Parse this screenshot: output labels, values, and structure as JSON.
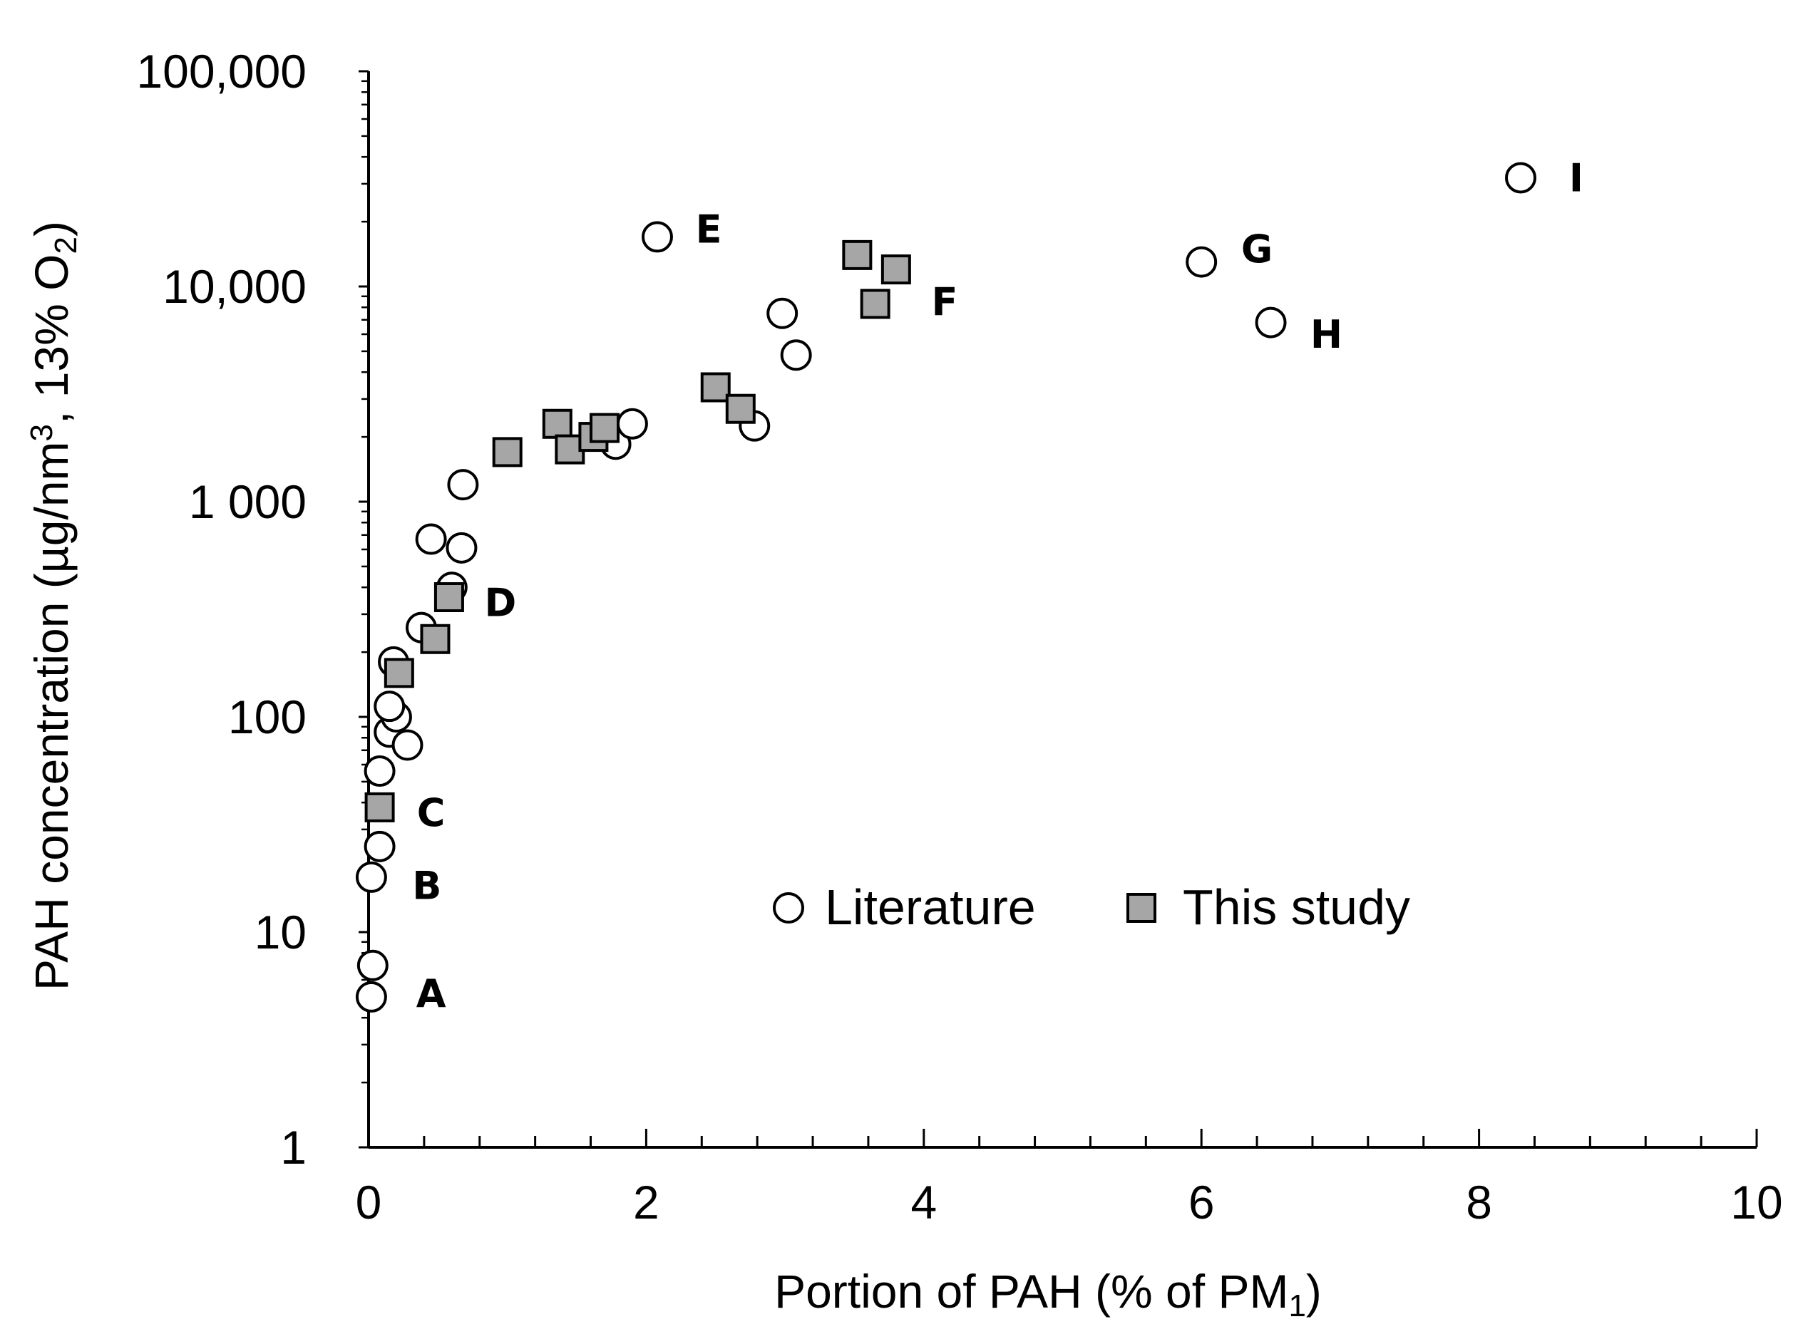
{
  "chart_data": {
    "type": "scatter",
    "xlabel": "Portion of PAH (% of PM1)",
    "ylabel": "PAH concentration (µg/nm3, 13% O2)",
    "xlim": [
      0,
      10
    ],
    "ylim": [
      1,
      100000
    ],
    "y_scale": "log",
    "x_ticks": [
      0,
      2,
      4,
      6,
      8,
      10
    ],
    "y_ticks": [
      1,
      10,
      100,
      1000,
      10000,
      100000
    ],
    "x_tick_labels": [
      "0",
      "2",
      "4",
      "6",
      "8",
      "10"
    ],
    "y_tick_labels": [
      "1",
      "10",
      "100",
      "1 000",
      "10,000",
      "100,000"
    ],
    "legend_position": "center-right",
    "grid": false,
    "series": [
      {
        "name": "Literature",
        "marker": "open-circle",
        "color": "#000000",
        "points": [
          {
            "x": 0.02,
            "y": 5
          },
          {
            "x": 0.03,
            "y": 7
          },
          {
            "x": 0.02,
            "y": 18
          },
          {
            "x": 0.08,
            "y": 25
          },
          {
            "x": 0.08,
            "y": 56
          },
          {
            "x": 0.15,
            "y": 85
          },
          {
            "x": 0.28,
            "y": 74
          },
          {
            "x": 0.2,
            "y": 100
          },
          {
            "x": 0.15,
            "y": 112
          },
          {
            "x": 0.18,
            "y": 180
          },
          {
            "x": 0.38,
            "y": 260
          },
          {
            "x": 0.6,
            "y": 400
          },
          {
            "x": 0.45,
            "y": 670
          },
          {
            "x": 0.67,
            "y": 610
          },
          {
            "x": 0.68,
            "y": 1200
          },
          {
            "x": 1.78,
            "y": 1850
          },
          {
            "x": 1.9,
            "y": 2300
          },
          {
            "x": 2.78,
            "y": 2250
          },
          {
            "x": 2.98,
            "y": 7500
          },
          {
            "x": 3.08,
            "y": 4800
          },
          {
            "x": 2.08,
            "y": 17000
          },
          {
            "x": 6.0,
            "y": 13000
          },
          {
            "x": 6.5,
            "y": 6800
          },
          {
            "x": 8.3,
            "y": 32000
          }
        ]
      },
      {
        "name": "This study",
        "marker": "filled-square",
        "color": "#a6a6a6",
        "points": [
          {
            "x": 0.08,
            "y": 38
          },
          {
            "x": 0.22,
            "y": 160
          },
          {
            "x": 0.48,
            "y": 230
          },
          {
            "x": 0.58,
            "y": 360
          },
          {
            "x": 1.0,
            "y": 1700
          },
          {
            "x": 1.36,
            "y": 2300
          },
          {
            "x": 1.45,
            "y": 1750
          },
          {
            "x": 1.62,
            "y": 2000
          },
          {
            "x": 1.7,
            "y": 2200
          },
          {
            "x": 2.5,
            "y": 3400
          },
          {
            "x": 2.68,
            "y": 2700
          },
          {
            "x": 3.52,
            "y": 14000
          },
          {
            "x": 3.8,
            "y": 12000
          },
          {
            "x": 3.65,
            "y": 8300
          }
        ]
      }
    ],
    "annotations": [
      {
        "text": "A",
        "x": 0.45,
        "y": 5.2
      },
      {
        "text": "B",
        "x": 0.42,
        "y": 16.5
      },
      {
        "text": "C",
        "x": 0.45,
        "y": 36
      },
      {
        "text": "D",
        "x": 0.95,
        "y": 340
      },
      {
        "text": "E",
        "x": 2.45,
        "y": 18500
      },
      {
        "text": "F",
        "x": 4.15,
        "y": 8500
      },
      {
        "text": "G",
        "x": 6.4,
        "y": 15000
      },
      {
        "text": "H",
        "x": 6.9,
        "y": 6000
      },
      {
        "text": "I",
        "x": 8.7,
        "y": 32000
      }
    ]
  }
}
